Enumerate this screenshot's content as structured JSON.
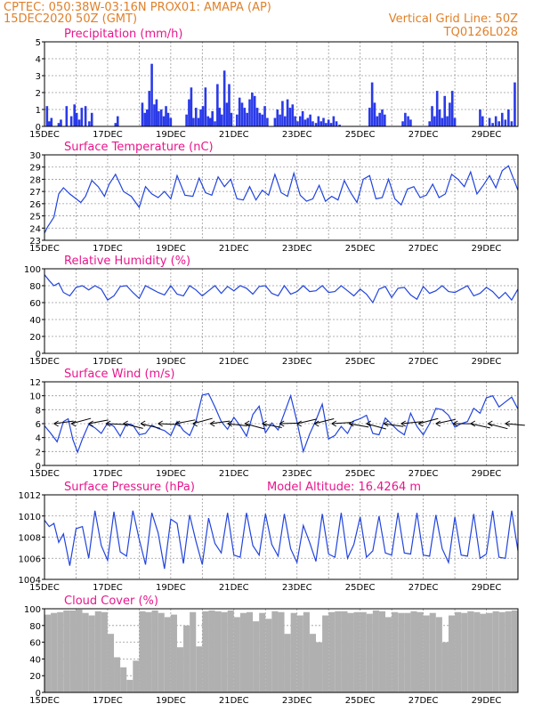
{
  "header": {
    "line1_left": "CPTEC:   050:38W-03:16N   PROX01: AMAPA (AP)",
    "line2_left": "15DEC2020 50Z (GMT)",
    "line1_right": "Vertical Grid Line: 50Z",
    "line2_right": "TQ0126L028"
  },
  "x_axis": {
    "labels": [
      "15DEC",
      "17DEC",
      "19DEC",
      "21DEC",
      "23DEC",
      "25DEC",
      "27DEC",
      "29DEC"
    ],
    "days": 15,
    "label_every_days": 2
  },
  "colors": {
    "header": "#e0802a",
    "title": "#e8168c",
    "line": "#2244dd",
    "precip_bar": "#2a3ae8",
    "cloud_bar": "#b0b0b0"
  },
  "chart_data": [
    {
      "type": "bar",
      "title": "Precipitation (mm/h)",
      "ylim": [
        0,
        5
      ],
      "yticks": [
        0,
        1,
        2,
        3,
        4,
        5
      ],
      "x_unit": "days since 15DEC",
      "x": [
        0.08,
        0.15,
        0.22,
        0.45,
        0.52,
        0.7,
        0.85,
        0.95,
        1.02,
        1.1,
        1.18,
        1.3,
        1.42,
        1.5,
        2.25,
        2.32,
        3.1,
        3.18,
        3.25,
        3.32,
        3.4,
        3.48,
        3.55,
        3.62,
        3.7,
        3.78,
        3.85,
        3.92,
        4.0,
        4.5,
        4.58,
        4.65,
        4.72,
        4.8,
        4.88,
        4.95,
        5.02,
        5.1,
        5.18,
        5.25,
        5.32,
        5.4,
        5.48,
        5.55,
        5.62,
        5.7,
        5.78,
        5.85,
        5.92,
        6.1,
        6.18,
        6.26,
        6.34,
        6.42,
        6.5,
        6.58,
        6.66,
        6.74,
        6.82,
        6.9,
        6.98,
        7.06,
        7.3,
        7.38,
        7.46,
        7.54,
        7.62,
        7.7,
        7.78,
        7.86,
        7.94,
        8.02,
        8.1,
        8.18,
        8.26,
        8.34,
        8.42,
        8.5,
        8.6,
        8.68,
        8.76,
        8.84,
        8.92,
        9.0,
        9.08,
        9.16,
        9.25,
        9.35,
        10.3,
        10.38,
        10.46,
        10.54,
        10.62,
        10.7,
        10.78,
        11.35,
        11.43,
        11.52,
        11.6,
        12.2,
        12.28,
        12.36,
        12.44,
        12.52,
        12.6,
        12.68,
        12.76,
        12.84,
        12.92,
        13.0,
        13.8,
        13.88,
        14.1,
        14.2,
        14.3,
        14.4,
        14.5,
        14.6,
        14.7,
        14.8,
        14.9
      ],
      "values": [
        1.2,
        0.3,
        0.5,
        0.2,
        0.4,
        1.2,
        0.6,
        1.3,
        0.8,
        0.4,
        1.1,
        1.2,
        0.3,
        0.8,
        0.2,
        0.6,
        1.4,
        0.8,
        1.0,
        2.1,
        3.7,
        1.3,
        1.6,
        0.9,
        1.0,
        0.6,
        1.2,
        0.8,
        0.5,
        0.7,
        1.6,
        2.3,
        0.5,
        1.1,
        0.5,
        1.0,
        1.2,
        2.3,
        0.6,
        0.5,
        0.9,
        0.3,
        2.5,
        1.1,
        0.7,
        3.3,
        1.4,
        2.5,
        0.8,
        0.7,
        1.7,
        1.4,
        1.1,
        0.8,
        1.6,
        2.0,
        1.8,
        1.1,
        0.8,
        0.7,
        1.2,
        0.5,
        0.5,
        1.0,
        0.7,
        1.5,
        0.6,
        1.6,
        1.1,
        1.3,
        0.6,
        0.3,
        0.6,
        0.9,
        0.4,
        0.5,
        0.7,
        0.3,
        0.2,
        0.6,
        0.3,
        0.5,
        0.2,
        0.4,
        0.2,
        0.6,
        0.3,
        0.1,
        1.1,
        2.6,
        1.4,
        0.6,
        0.8,
        1.0,
        0.7,
        0.3,
        0.8,
        0.6,
        0.4,
        0.3,
        1.2,
        0.6,
        2.1,
        1.0,
        0.5,
        1.8,
        0.6,
        1.4,
        2.1,
        0.5,
        1.0,
        0.6,
        0.5,
        0.2,
        0.6,
        0.3,
        0.8,
        0.4,
        1.0,
        0.3,
        2.6
      ]
    },
    {
      "type": "line",
      "title": "Surface Temperature (nC)",
      "ylim": [
        23,
        30
      ],
      "yticks": [
        23,
        24,
        25,
        26,
        27,
        28,
        29,
        30
      ],
      "x_unit": "days since 15DEC",
      "x": [
        0,
        0.1,
        0.2,
        0.3,
        0.45,
        0.6,
        0.8,
        1.0,
        1.15,
        1.3,
        1.5,
        1.7,
        1.9,
        2.05,
        2.25,
        2.5,
        2.75,
        3.0,
        3.2,
        3.4,
        3.6,
        3.8,
        4.0,
        4.2,
        4.45,
        4.7,
        4.9,
        5.1,
        5.3,
        5.5,
        5.7,
        5.9,
        6.1,
        6.3,
        6.5,
        6.7,
        6.9,
        7.1,
        7.3,
        7.5,
        7.7,
        7.9,
        8.1,
        8.3,
        8.5,
        8.7,
        8.9,
        9.1,
        9.3,
        9.5,
        9.7,
        9.9,
        10.1,
        10.3,
        10.5,
        10.7,
        10.9,
        11.1,
        11.3,
        11.5,
        11.7,
        11.9,
        12.1,
        12.3,
        12.5,
        12.7,
        12.9,
        13.1,
        13.3,
        13.5,
        13.7,
        13.9,
        14.1,
        14.3,
        14.5,
        14.7,
        15.0
      ],
      "values": [
        23.6,
        24.1,
        24.5,
        24.9,
        26.8,
        27.3,
        26.8,
        26.4,
        26.1,
        26.6,
        27.9,
        27.4,
        26.6,
        27.6,
        28.4,
        27.0,
        26.6,
        25.7,
        27.4,
        26.8,
        26.5,
        27.0,
        26.4,
        28.3,
        26.7,
        26.6,
        28.1,
        26.9,
        26.7,
        28.2,
        27.4,
        28.0,
        26.4,
        26.3,
        27.4,
        26.3,
        27.1,
        26.7,
        28.4,
        26.9,
        26.6,
        28.5,
        26.7,
        26.2,
        26.4,
        27.5,
        26.2,
        26.6,
        26.3,
        27.9,
        26.9,
        26.1,
        28.0,
        28.3,
        26.4,
        26.5,
        28.0,
        26.4,
        25.9,
        27.2,
        27.4,
        26.5,
        26.7,
        27.6,
        26.5,
        26.8,
        28.4,
        28.0,
        27.4,
        28.6,
        26.8,
        27.5,
        28.3,
        27.3,
        28.7,
        29.1,
        27.1
      ]
    },
    {
      "type": "line",
      "title": "Relative Humidity (%)",
      "ylim": [
        0,
        100
      ],
      "yticks": [
        0,
        20,
        40,
        60,
        80,
        100
      ],
      "x_unit": "days since 15DEC",
      "x": [
        0,
        0.15,
        0.3,
        0.45,
        0.6,
        0.8,
        1.0,
        1.2,
        1.4,
        1.6,
        1.8,
        2.0,
        2.2,
        2.4,
        2.6,
        2.8,
        3.0,
        3.2,
        3.4,
        3.6,
        3.8,
        4.0,
        4.2,
        4.4,
        4.6,
        4.8,
        5.0,
        5.2,
        5.4,
        5.6,
        5.8,
        6.0,
        6.2,
        6.4,
        6.6,
        6.8,
        7.0,
        7.2,
        7.4,
        7.6,
        7.8,
        8.0,
        8.2,
        8.4,
        8.6,
        8.8,
        9.0,
        9.2,
        9.4,
        9.6,
        9.8,
        10.0,
        10.2,
        10.4,
        10.6,
        10.8,
        11.0,
        11.2,
        11.4,
        11.6,
        11.8,
        12.0,
        12.2,
        12.4,
        12.6,
        12.8,
        13.0,
        13.2,
        13.4,
        13.6,
        13.8,
        14.0,
        14.2,
        14.4,
        14.6,
        14.8,
        15.0
      ],
      "values": [
        93,
        86,
        80,
        83,
        72,
        68,
        78,
        80,
        75,
        80,
        76,
        63,
        68,
        79,
        80,
        72,
        65,
        80,
        76,
        72,
        69,
        80,
        70,
        68,
        80,
        75,
        68,
        74,
        80,
        71,
        79,
        74,
        80,
        77,
        70,
        79,
        80,
        71,
        68,
        80,
        70,
        73,
        80,
        73,
        74,
        80,
        72,
        73,
        80,
        74,
        68,
        76,
        70,
        60,
        76,
        79,
        66,
        77,
        78,
        69,
        64,
        79,
        71,
        74,
        80,
        73,
        72,
        76,
        80,
        68,
        71,
        78,
        73,
        65,
        72,
        63,
        76
      ]
    },
    {
      "type": "line",
      "title": "Surface Wind (m/s)",
      "ylim": [
        0,
        12
      ],
      "yticks": [
        0,
        2,
        4,
        6,
        8,
        10,
        12
      ],
      "x_unit": "days since 15DEC",
      "x": [
        0,
        0.2,
        0.4,
        0.6,
        0.75,
        0.9,
        1.05,
        1.2,
        1.4,
        1.6,
        1.8,
        2.0,
        2.2,
        2.4,
        2.6,
        2.8,
        3.0,
        3.2,
        3.4,
        3.6,
        3.8,
        4.0,
        4.2,
        4.4,
        4.6,
        4.8,
        5.0,
        5.2,
        5.4,
        5.6,
        5.8,
        6.0,
        6.2,
        6.4,
        6.6,
        6.8,
        7.0,
        7.2,
        7.4,
        7.6,
        7.8,
        8.0,
        8.2,
        8.4,
        8.6,
        8.8,
        9.0,
        9.2,
        9.4,
        9.6,
        9.8,
        10.0,
        10.2,
        10.4,
        10.6,
        10.8,
        11.0,
        11.2,
        11.4,
        11.6,
        11.8,
        12.0,
        12.2,
        12.4,
        12.6,
        12.8,
        13.0,
        13.2,
        13.4,
        13.6,
        13.8,
        14.0,
        14.2,
        14.4,
        14.6,
        14.8,
        15.0
      ],
      "values": [
        5.7,
        4.6,
        3.4,
        6.3,
        6.7,
        3.7,
        1.9,
        3.8,
        5.9,
        5.4,
        4.6,
        6.1,
        5.6,
        4.2,
        6.0,
        5.8,
        4.4,
        4.6,
        5.8,
        5.3,
        5.0,
        4.3,
        6.3,
        5.0,
        4.3,
        6.4,
        10.1,
        10.3,
        8.4,
        6.3,
        5.2,
        6.9,
        5.7,
        4.2,
        7.3,
        8.5,
        4.7,
        6.1,
        5.1,
        7.5,
        10.0,
        6.3,
        2.0,
        4.5,
        6.5,
        8.8,
        3.8,
        4.3,
        5.6,
        4.6,
        6.4,
        6.7,
        7.2,
        4.6,
        4.4,
        6.8,
        5.9,
        5.0,
        4.4,
        7.5,
        5.6,
        4.4,
        6.0,
        8.2,
        8.0,
        7.2,
        5.5,
        6.0,
        6.3,
        8.2,
        7.5,
        9.7,
        10.0,
        8.4,
        9.1,
        9.8,
        8.1
      ]
    },
    {
      "type": "line",
      "title": "Surface Pressure (hPa)",
      "ylim": [
        1004,
        1012
      ],
      "yticks": [
        1004,
        1006,
        1008,
        1010,
        1012
      ],
      "x_unit": "days since 15DEC",
      "x": [
        0,
        0.15,
        0.3,
        0.45,
        0.6,
        0.8,
        1.0,
        1.2,
        1.4,
        1.6,
        1.8,
        2.0,
        2.2,
        2.4,
        2.6,
        2.8,
        3.0,
        3.2,
        3.4,
        3.6,
        3.8,
        4.0,
        4.2,
        4.4,
        4.6,
        4.8,
        5.0,
        5.2,
        5.4,
        5.6,
        5.8,
        6.0,
        6.2,
        6.4,
        6.6,
        6.8,
        7.0,
        7.2,
        7.4,
        7.6,
        7.8,
        8.0,
        8.2,
        8.4,
        8.6,
        8.8,
        9.0,
        9.2,
        9.4,
        9.6,
        9.8,
        10.0,
        10.2,
        10.4,
        10.6,
        10.8,
        11.0,
        11.2,
        11.4,
        11.6,
        11.8,
        12.0,
        12.2,
        12.4,
        12.6,
        12.8,
        13.0,
        13.2,
        13.4,
        13.6,
        13.8,
        14.0,
        14.2,
        14.4,
        14.6,
        14.8,
        15.0
      ],
      "values": [
        1009.6,
        1009.0,
        1009.3,
        1007.5,
        1008.3,
        1005.3,
        1008.8,
        1009.0,
        1006.0,
        1010.5,
        1007.2,
        1005.8,
        1010.4,
        1006.6,
        1006.2,
        1010.5,
        1007.8,
        1005.4,
        1010.3,
        1008.4,
        1005.0,
        1009.7,
        1009.3,
        1005.5,
        1010.1,
        1007.6,
        1005.4,
        1009.8,
        1007.4,
        1006.5,
        1010.3,
        1006.3,
        1006.1,
        1010.3,
        1007.2,
        1006.3,
        1010.2,
        1007.3,
        1006.2,
        1010.2,
        1006.9,
        1005.6,
        1009.1,
        1007.5,
        1005.7,
        1010.2,
        1006.4,
        1006.1,
        1010.3,
        1006.0,
        1007.3,
        1009.9,
        1006.1,
        1006.7,
        1010.0,
        1006.5,
        1006.3,
        1010.3,
        1006.5,
        1006.4,
        1010.3,
        1006.3,
        1006.2,
        1010.1,
        1006.9,
        1005.6,
        1009.9,
        1006.3,
        1006.2,
        1010.2,
        1006.0,
        1006.4,
        1010.5,
        1006.1,
        1006.0,
        1010.5,
        1006.7
      ]
    },
    {
      "type": "bar",
      "title": "Cloud Cover (%)",
      "ylim": [
        0,
        100
      ],
      "yticks": [
        0,
        20,
        40,
        60,
        80,
        100
      ],
      "x_unit": "days since 15DEC",
      "x": [
        0,
        0.2,
        0.4,
        0.6,
        0.8,
        1.0,
        1.2,
        1.4,
        1.6,
        1.8,
        2.0,
        2.2,
        2.4,
        2.6,
        2.8,
        3.0,
        3.2,
        3.4,
        3.6,
        3.8,
        4.0,
        4.2,
        4.4,
        4.6,
        4.8,
        5.0,
        5.2,
        5.4,
        5.6,
        5.8,
        6.0,
        6.2,
        6.4,
        6.6,
        6.8,
        7.0,
        7.2,
        7.4,
        7.6,
        7.8,
        8.0,
        8.2,
        8.4,
        8.6,
        8.8,
        9.0,
        9.2,
        9.4,
        9.6,
        9.8,
        10.0,
        10.2,
        10.4,
        10.6,
        10.8,
        11.0,
        11.2,
        11.4,
        11.6,
        11.8,
        12.0,
        12.2,
        12.4,
        12.6,
        12.8,
        13.0,
        13.2,
        13.4,
        13.6,
        13.8,
        14.0,
        14.2,
        14.4,
        14.6,
        14.8
      ],
      "values": [
        93,
        95,
        96,
        98,
        98,
        99,
        95,
        92,
        97,
        96,
        70,
        42,
        30,
        15,
        38,
        97,
        96,
        98,
        95,
        90,
        93,
        54,
        80,
        96,
        55,
        97,
        98,
        97,
        96,
        98,
        90,
        95,
        96,
        85,
        95,
        88,
        97,
        96,
        70,
        95,
        92,
        96,
        70,
        60,
        92,
        96,
        97,
        97,
        95,
        96,
        96,
        94,
        98,
        97,
        90,
        96,
        95,
        95,
        97,
        96,
        92,
        95,
        90,
        60,
        92,
        96,
        95,
        97,
        96,
        94,
        95,
        97,
        96,
        97,
        98
      ]
    }
  ],
  "panel_extra": {
    "pressure_right_label": "Model Altitude: 16.4264 m"
  }
}
